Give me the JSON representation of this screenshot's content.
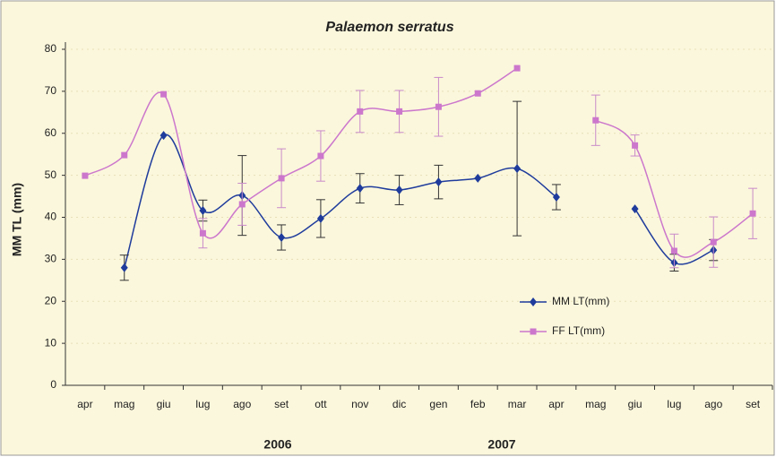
{
  "chart_data": {
    "type": "line",
    "title": "Palaemon serratus",
    "y_label": "MM TL (mm)",
    "categories": [
      "apr",
      "mag",
      "giu",
      "lug",
      "ago",
      "set",
      "ott",
      "nov",
      "dic",
      "gen",
      "feb",
      "mar",
      "apr",
      "mag",
      "giu",
      "lug",
      "ago",
      "set"
    ],
    "year_labels": [
      "2006",
      "2007"
    ],
    "series": [
      {
        "name": "MM LT(mm)",
        "color": "#1f3c9c",
        "marker": "diamond",
        "values": [
          null,
          28,
          59.5,
          41.6,
          45.2,
          35.2,
          39.7,
          46.9,
          46.5,
          48.4,
          49.3,
          51.6,
          44.8,
          null,
          42,
          29.2,
          32.2,
          null
        ],
        "errors": [
          null,
          3,
          null,
          2.5,
          9.5,
          3,
          4.5,
          3.5,
          3.5,
          4,
          null,
          16,
          3,
          null,
          null,
          2,
          2.5,
          null
        ]
      },
      {
        "name": "FF LT(mm)",
        "color": "#cc77cc",
        "marker": "square",
        "values": [
          49.9,
          54.8,
          69.3,
          36.2,
          43.1,
          49.3,
          54.6,
          65.2,
          65.2,
          66.3,
          69.5,
          75.5,
          null,
          63.1,
          57.1,
          32,
          34.1,
          40.9
        ],
        "errors": [
          null,
          null,
          null,
          3.5,
          5,
          7,
          6,
          5,
          5,
          7,
          null,
          null,
          null,
          6,
          2.5,
          4,
          6,
          6
        ]
      }
    ],
    "ylim": [
      0,
      80
    ],
    "yticks": [
      0,
      10,
      20,
      30,
      40,
      50,
      60,
      70,
      80
    ],
    "grid": true
  }
}
